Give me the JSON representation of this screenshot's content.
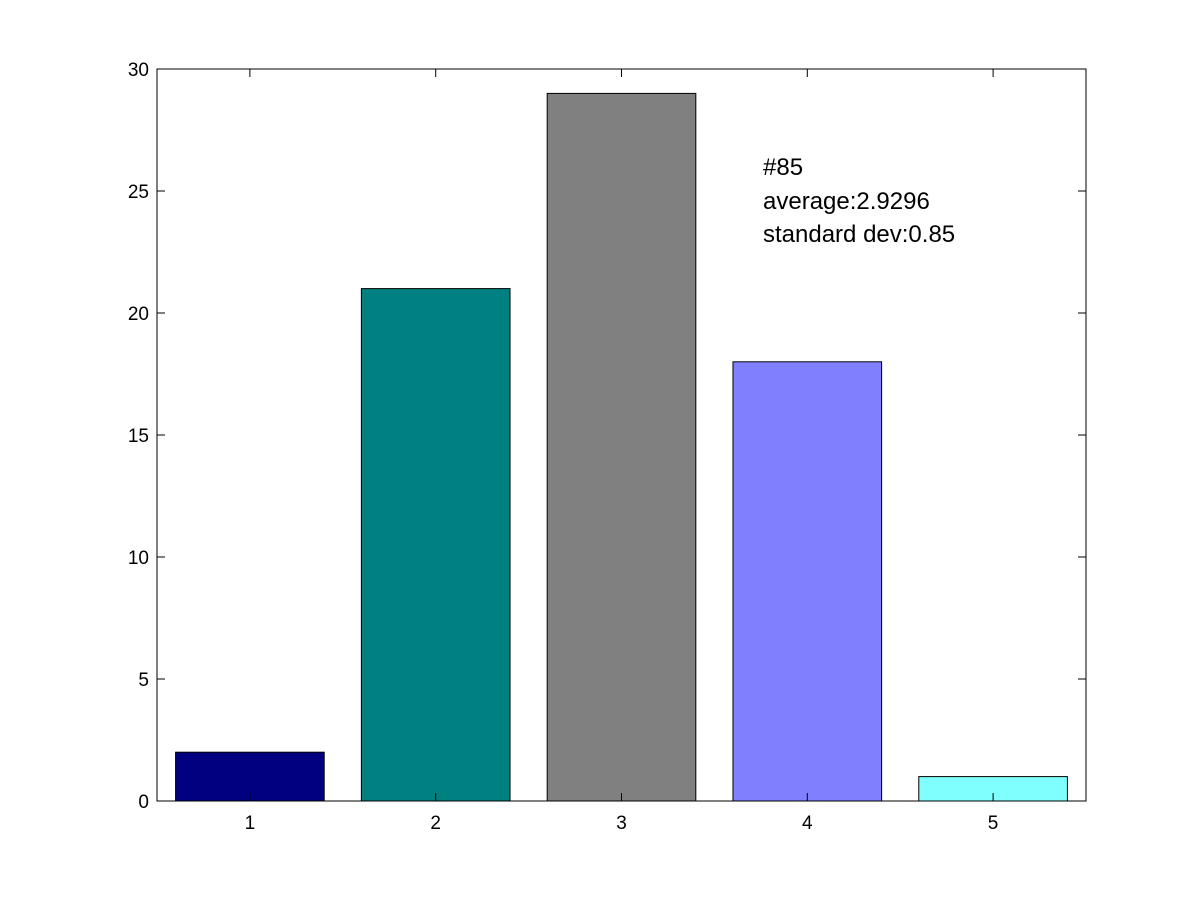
{
  "chart_data": {
    "type": "bar",
    "categories": [
      "1",
      "2",
      "3",
      "4",
      "5"
    ],
    "values": [
      2,
      21,
      29,
      18,
      1
    ],
    "colors": [
      "#000080",
      "#008080",
      "#808080",
      "#8080ff",
      "#80ffff"
    ],
    "xlabel": "",
    "ylabel": "",
    "ylim": [
      0,
      30
    ],
    "yticks": [
      0,
      5,
      10,
      15,
      20,
      25,
      30
    ],
    "grid": false,
    "annotations": [
      "#85",
      "average:2.9296",
      "standard dev:0.85"
    ]
  }
}
